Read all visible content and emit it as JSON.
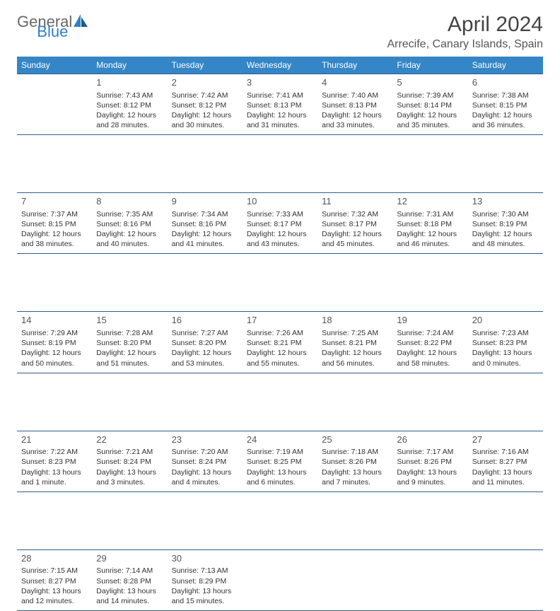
{
  "brand": {
    "part1": "General",
    "part2": "Blue"
  },
  "title": "April 2024",
  "location": "Arrecife, Canary Islands, Spain",
  "colors": {
    "header_bg": "#3486c7",
    "header_text": "#ffffff",
    "border": "#2f5e8a",
    "text": "#333333",
    "title": "#444444",
    "logo_gray": "#666666",
    "logo_blue": "#2f7fc3"
  },
  "weekdays": [
    "Sunday",
    "Monday",
    "Tuesday",
    "Wednesday",
    "Thursday",
    "Friday",
    "Saturday"
  ],
  "start_offset": 1,
  "days": [
    {
      "n": 1,
      "sunrise": "7:43 AM",
      "sunset": "8:12 PM",
      "daylight": "12 hours and 28 minutes."
    },
    {
      "n": 2,
      "sunrise": "7:42 AM",
      "sunset": "8:12 PM",
      "daylight": "12 hours and 30 minutes."
    },
    {
      "n": 3,
      "sunrise": "7:41 AM",
      "sunset": "8:13 PM",
      "daylight": "12 hours and 31 minutes."
    },
    {
      "n": 4,
      "sunrise": "7:40 AM",
      "sunset": "8:13 PM",
      "daylight": "12 hours and 33 minutes."
    },
    {
      "n": 5,
      "sunrise": "7:39 AM",
      "sunset": "8:14 PM",
      "daylight": "12 hours and 35 minutes."
    },
    {
      "n": 6,
      "sunrise": "7:38 AM",
      "sunset": "8:15 PM",
      "daylight": "12 hours and 36 minutes."
    },
    {
      "n": 7,
      "sunrise": "7:37 AM",
      "sunset": "8:15 PM",
      "daylight": "12 hours and 38 minutes."
    },
    {
      "n": 8,
      "sunrise": "7:35 AM",
      "sunset": "8:16 PM",
      "daylight": "12 hours and 40 minutes."
    },
    {
      "n": 9,
      "sunrise": "7:34 AM",
      "sunset": "8:16 PM",
      "daylight": "12 hours and 41 minutes."
    },
    {
      "n": 10,
      "sunrise": "7:33 AM",
      "sunset": "8:17 PM",
      "daylight": "12 hours and 43 minutes."
    },
    {
      "n": 11,
      "sunrise": "7:32 AM",
      "sunset": "8:17 PM",
      "daylight": "12 hours and 45 minutes."
    },
    {
      "n": 12,
      "sunrise": "7:31 AM",
      "sunset": "8:18 PM",
      "daylight": "12 hours and 46 minutes."
    },
    {
      "n": 13,
      "sunrise": "7:30 AM",
      "sunset": "8:19 PM",
      "daylight": "12 hours and 48 minutes."
    },
    {
      "n": 14,
      "sunrise": "7:29 AM",
      "sunset": "8:19 PM",
      "daylight": "12 hours and 50 minutes."
    },
    {
      "n": 15,
      "sunrise": "7:28 AM",
      "sunset": "8:20 PM",
      "daylight": "12 hours and 51 minutes."
    },
    {
      "n": 16,
      "sunrise": "7:27 AM",
      "sunset": "8:20 PM",
      "daylight": "12 hours and 53 minutes."
    },
    {
      "n": 17,
      "sunrise": "7:26 AM",
      "sunset": "8:21 PM",
      "daylight": "12 hours and 55 minutes."
    },
    {
      "n": 18,
      "sunrise": "7:25 AM",
      "sunset": "8:21 PM",
      "daylight": "12 hours and 56 minutes."
    },
    {
      "n": 19,
      "sunrise": "7:24 AM",
      "sunset": "8:22 PM",
      "daylight": "12 hours and 58 minutes."
    },
    {
      "n": 20,
      "sunrise": "7:23 AM",
      "sunset": "8:23 PM",
      "daylight": "13 hours and 0 minutes."
    },
    {
      "n": 21,
      "sunrise": "7:22 AM",
      "sunset": "8:23 PM",
      "daylight": "13 hours and 1 minute."
    },
    {
      "n": 22,
      "sunrise": "7:21 AM",
      "sunset": "8:24 PM",
      "daylight": "13 hours and 3 minutes."
    },
    {
      "n": 23,
      "sunrise": "7:20 AM",
      "sunset": "8:24 PM",
      "daylight": "13 hours and 4 minutes."
    },
    {
      "n": 24,
      "sunrise": "7:19 AM",
      "sunset": "8:25 PM",
      "daylight": "13 hours and 6 minutes."
    },
    {
      "n": 25,
      "sunrise": "7:18 AM",
      "sunset": "8:26 PM",
      "daylight": "13 hours and 7 minutes."
    },
    {
      "n": 26,
      "sunrise": "7:17 AM",
      "sunset": "8:26 PM",
      "daylight": "13 hours and 9 minutes."
    },
    {
      "n": 27,
      "sunrise": "7:16 AM",
      "sunset": "8:27 PM",
      "daylight": "13 hours and 11 minutes."
    },
    {
      "n": 28,
      "sunrise": "7:15 AM",
      "sunset": "8:27 PM",
      "daylight": "13 hours and 12 minutes."
    },
    {
      "n": 29,
      "sunrise": "7:14 AM",
      "sunset": "8:28 PM",
      "daylight": "13 hours and 14 minutes."
    },
    {
      "n": 30,
      "sunrise": "7:13 AM",
      "sunset": "8:29 PM",
      "daylight": "13 hours and 15 minutes."
    }
  ],
  "labels": {
    "sunrise_prefix": "Sunrise: ",
    "sunset_prefix": "Sunset: ",
    "daylight_prefix": "Daylight: "
  }
}
